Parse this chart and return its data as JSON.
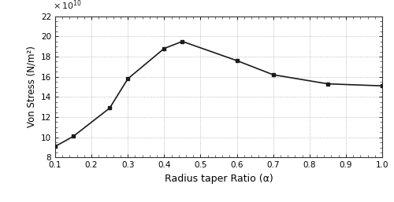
{
  "x": [
    0.1,
    0.15,
    0.25,
    0.3,
    0.4,
    0.45,
    0.6,
    0.7,
    0.85,
    1.0
  ],
  "y": [
    91000000000.0,
    101000000000.0,
    129000000000.0,
    158000000000.0,
    188000000000.0,
    195000000000.0,
    176000000000.0,
    162000000000.0,
    153000000000.0,
    151000000000.0
  ],
  "xlabel": "Radius taper Ratio (α)",
  "ylabel": "Von Stress (N/m²)",
  "xlim": [
    0.1,
    1.0
  ],
  "ylim": [
    80000000000.0,
    220000000000.0
  ],
  "xticks": [
    0.1,
    0.2,
    0.3,
    0.4,
    0.5,
    0.6,
    0.7,
    0.8,
    0.9,
    1.0
  ],
  "xtick_labels": [
    "0.1",
    "0.2",
    "0.3",
    "0.4",
    "0.5",
    "0.6",
    "0.7",
    "0.8",
    "0.9",
    "1.0"
  ],
  "yticks": [
    80000000000.0,
    100000000000.0,
    120000000000.0,
    140000000000.0,
    160000000000.0,
    180000000000.0,
    200000000000.0,
    220000000000.0
  ],
  "ytick_labels": [
    "8",
    "10",
    "12",
    "14",
    "16",
    "18",
    "20",
    "22"
  ],
  "line_color": "#1a1a1a",
  "marker": "s",
  "marker_size": 3.5,
  "line_width": 1.2,
  "background_color": "#ffffff",
  "grid_color": "#aaaaaa",
  "scale_label": "X 10",
  "scale_exp": "10"
}
